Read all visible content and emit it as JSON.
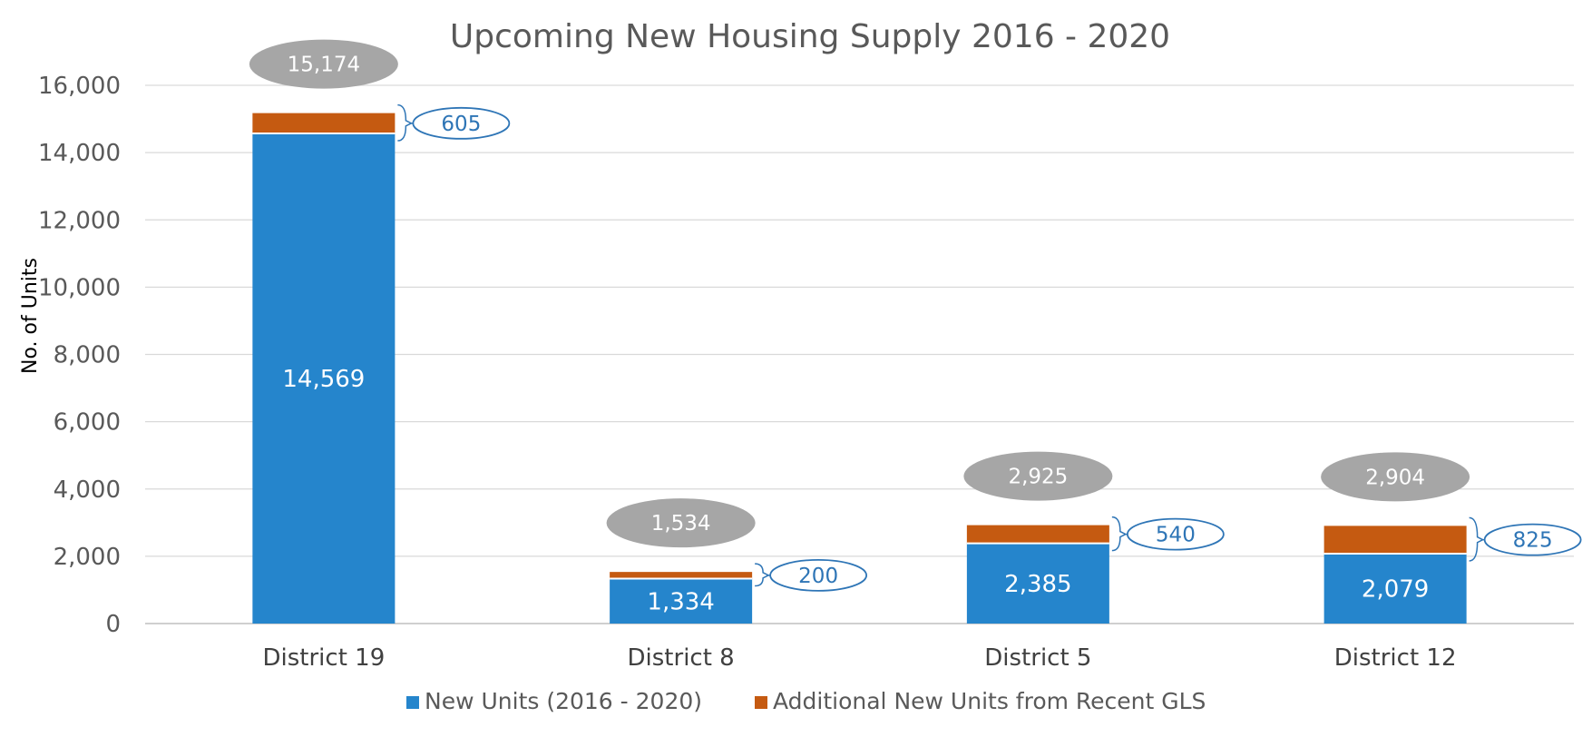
{
  "chart_data": {
    "type": "bar",
    "stacked": true,
    "title": "Upcoming New Housing Supply 2016 - 2020",
    "ylabel": "No. of Units",
    "xlabel": "",
    "ylim": [
      0,
      16000
    ],
    "yticks": [
      0,
      2000,
      4000,
      6000,
      8000,
      10000,
      12000,
      14000,
      16000
    ],
    "ytick_labels": [
      "0",
      "2,000",
      "4,000",
      "6,000",
      "8,000",
      "10,000",
      "12,000",
      "14,000",
      "16,000"
    ],
    "grid": true,
    "legend_position": "bottom",
    "categories": [
      "District 19",
      "District 8",
      "District 5",
      "District 12"
    ],
    "series": [
      {
        "name": "New Units (2016 - 2020)",
        "color": "#2585CC",
        "values": [
          14569,
          1334,
          2385,
          2079
        ],
        "labels": [
          "14,569",
          "1,334",
          "2,385",
          "2,079"
        ]
      },
      {
        "name": "Additional New Units from Recent GLS",
        "color": "#C55A11",
        "values": [
          605,
          200,
          540,
          825
        ],
        "labels": [
          "605",
          "200",
          "540",
          "825"
        ]
      }
    ],
    "totals": [
      15174,
      1534,
      2925,
      2904
    ],
    "total_labels": [
      "15,174",
      "1,534",
      "2,925",
      "2,904"
    ],
    "total_bubble_color": "#A6A6A6",
    "callout_color": "#2E75B6"
  }
}
